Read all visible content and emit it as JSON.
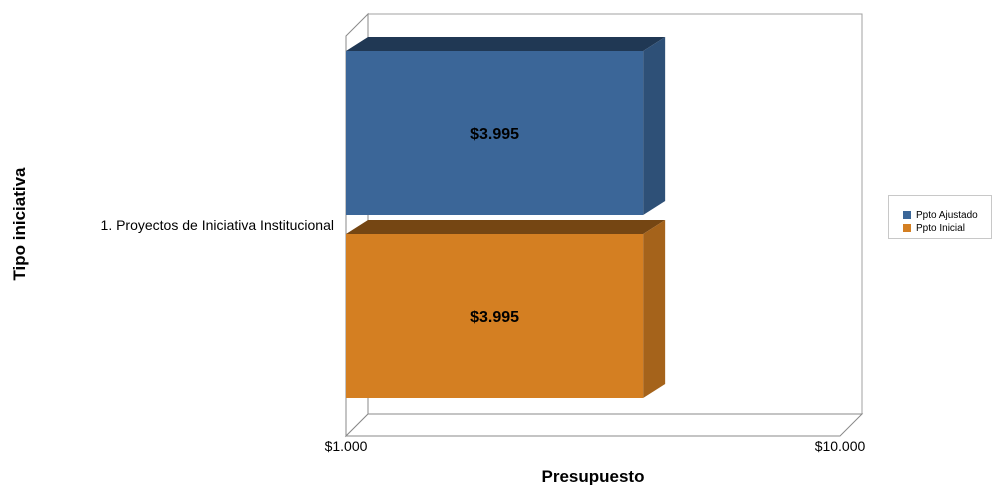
{
  "chart_data": {
    "type": "bar",
    "orientation": "horizontal",
    "title": "",
    "xlabel": "Presupuesto",
    "ylabel": "Tipo iniciativa",
    "categories": [
      "1. Proyectos de Iniciativa Institucional"
    ],
    "series": [
      {
        "name": "Ppto Ajustado",
        "values": [
          3995
        ],
        "color": "#3b6698",
        "label": "$3.995"
      },
      {
        "name": "Ppto Inicial",
        "values": [
          3995
        ],
        "color": "#d47f22",
        "label": "$3.995"
      }
    ],
    "x_scale": "log",
    "xlim": [
      1000,
      10000
    ],
    "x_tick_labels": [
      "$1.000",
      "$10.000"
    ],
    "legend_position": "right",
    "grid": false
  }
}
